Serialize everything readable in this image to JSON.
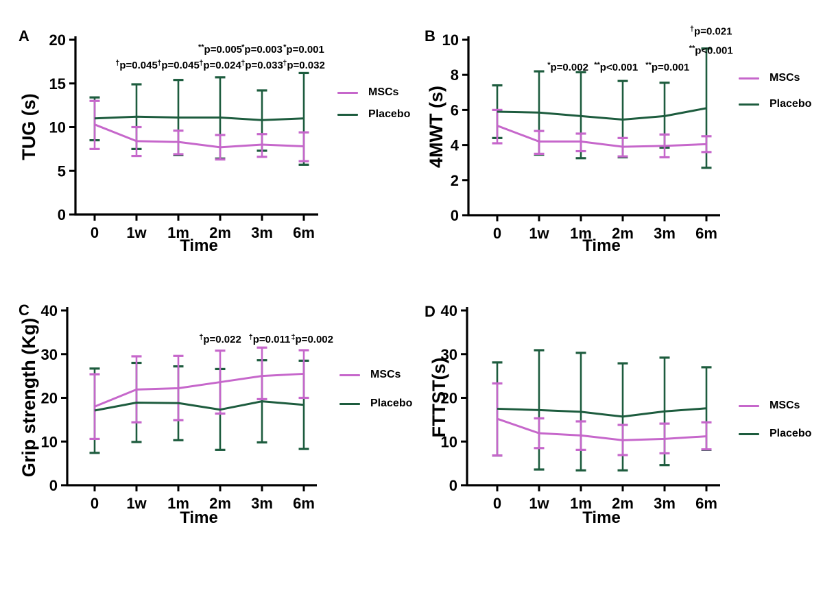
{
  "figure": {
    "background": "#ffffff",
    "legend_labels": {
      "mscs": "MSCs",
      "placebo": "Placebo"
    },
    "colors": {
      "mscs": "#c667cb",
      "placebo": "#1d5c3e",
      "axis": "#000000"
    }
  },
  "chart_data": [
    {
      "type": "line",
      "panel_label": "A",
      "ylabel": "TUG (s)",
      "xlabel": "Time",
      "ylim": [
        0,
        20
      ],
      "yticks": [
        0,
        5,
        10,
        15,
        20
      ],
      "categories": [
        "0",
        "1w",
        "1m",
        "2m",
        "3m",
        "6m"
      ],
      "grid": false,
      "legend_position": "right",
      "series": [
        {
          "name": "MSCs",
          "color_key": "mscs",
          "values": [
            10.3,
            8.4,
            8.3,
            7.7,
            8.0,
            7.8
          ],
          "err_low": [
            7.5,
            6.7,
            6.9,
            6.3,
            6.6,
            6.1
          ],
          "err_high": [
            13.0,
            10.0,
            9.6,
            9.1,
            9.2,
            9.4
          ]
        },
        {
          "name": "Placebo",
          "color_key": "placebo",
          "values": [
            11.0,
            11.2,
            11.1,
            11.1,
            10.8,
            11.0
          ],
          "err_low": [
            8.5,
            7.5,
            6.8,
            6.4,
            7.3,
            5.7
          ],
          "err_high": [
            13.4,
            14.9,
            15.4,
            15.7,
            14.2,
            16.2
          ]
        }
      ],
      "annotations": [
        {
          "sup": "**",
          "text": "p=0.005",
          "cat": 3.0,
          "y": 18.5
        },
        {
          "sup": "*",
          "text": "p=0.003",
          "cat": 4.0,
          "y": 18.5
        },
        {
          "sup": "*",
          "text": "p=0.001",
          "cat": 5.0,
          "y": 18.5
        },
        {
          "sup": "†",
          "text": "p=0.045",
          "cat": 1.0,
          "y": 16.7
        },
        {
          "sup": "†",
          "text": "p=0.045",
          "cat": 2.0,
          "y": 16.7
        },
        {
          "sup": "†",
          "text": "p=0.024",
          "cat": 3.0,
          "y": 16.7
        },
        {
          "sup": "†",
          "text": "p=0.033",
          "cat": 4.0,
          "y": 16.7
        },
        {
          "sup": "†",
          "text": "p=0.032",
          "cat": 5.0,
          "y": 16.7
        }
      ]
    },
    {
      "type": "line",
      "panel_label": "B",
      "ylabel": "4MWT (s)",
      "xlabel": "Time",
      "ylim": [
        0,
        10
      ],
      "yticks": [
        0,
        2,
        4,
        6,
        8,
        10
      ],
      "categories": [
        "0",
        "1w",
        "1m",
        "2m",
        "3m",
        "6m"
      ],
      "grid": false,
      "legend_position": "right",
      "series": [
        {
          "name": "MSCs",
          "color_key": "mscs",
          "values": [
            5.1,
            4.2,
            4.2,
            3.9,
            3.95,
            4.05
          ],
          "err_low": [
            4.1,
            3.5,
            3.65,
            3.35,
            3.3,
            3.6
          ],
          "err_high": [
            6.0,
            4.8,
            4.65,
            4.4,
            4.6,
            4.5
          ]
        },
        {
          "name": "Placebo",
          "color_key": "placebo",
          "values": [
            5.9,
            5.85,
            5.65,
            5.45,
            5.65,
            6.1
          ],
          "err_low": [
            4.4,
            3.45,
            3.25,
            3.3,
            3.85,
            2.7
          ],
          "err_high": [
            7.4,
            8.2,
            8.15,
            7.65,
            7.55,
            9.5
          ]
        }
      ],
      "annotations": [
        {
          "sup": "*",
          "text": "p=0.002",
          "cat": 1.69,
          "y": 8.25
        },
        {
          "sup": "**",
          "text": "p<0.001",
          "cat": 2.84,
          "y": 8.25
        },
        {
          "sup": "**",
          "text": "p=0.001",
          "cat": 4.07,
          "y": 8.25
        },
        {
          "sup": "†",
          "text": "p=0.021",
          "cat": 5.11,
          "y": 10.3
        },
        {
          "sup": "**",
          "text": "p<0.001",
          "cat": 5.11,
          "y": 9.2
        }
      ]
    },
    {
      "type": "line",
      "panel_label": "C",
      "ylabel": "Grip strength (Kg)",
      "xlabel": "Time",
      "ylim": [
        0,
        40
      ],
      "yticks": [
        0,
        10,
        20,
        30,
        40
      ],
      "categories": [
        "0",
        "1w",
        "1m",
        "2m",
        "3m",
        "6m"
      ],
      "grid": false,
      "legend_position": "right",
      "series": [
        {
          "name": "MSCs",
          "color_key": "mscs",
          "values": [
            18.0,
            21.9,
            22.2,
            23.6,
            25.0,
            25.5
          ],
          "err_low": [
            10.6,
            14.4,
            14.9,
            16.4,
            19.7,
            20.0
          ],
          "err_high": [
            25.4,
            29.5,
            29.6,
            30.8,
            31.5,
            30.9
          ]
        },
        {
          "name": "Placebo",
          "color_key": "placebo",
          "values": [
            17.1,
            18.9,
            18.8,
            17.3,
            19.2,
            18.4
          ],
          "err_low": [
            7.4,
            9.9,
            10.3,
            8.1,
            9.8,
            8.3
          ],
          "err_high": [
            26.7,
            28.0,
            27.2,
            26.6,
            28.6,
            28.5
          ]
        }
      ],
      "annotations": [
        {
          "sup": "†",
          "text": "p=0.022",
          "cat": 3.0,
          "y": 32.6
        },
        {
          "sup": "†",
          "text": "p=0.011",
          "cat": 4.18,
          "y": 32.6
        },
        {
          "sup": "‡",
          "text": "p=0.002",
          "cat": 5.2,
          "y": 32.6
        }
      ]
    },
    {
      "type": "line",
      "panel_label": "D",
      "ylabel": "FTTST(s)",
      "xlabel": "Time",
      "ylim": [
        0,
        40
      ],
      "yticks": [
        0,
        10,
        20,
        30,
        40
      ],
      "categories": [
        "0",
        "1w",
        "1m",
        "2m",
        "3m",
        "6m"
      ],
      "grid": false,
      "legend_position": "right",
      "series": [
        {
          "name": "MSCs",
          "color_key": "mscs",
          "values": [
            15.2,
            11.9,
            11.4,
            10.3,
            10.6,
            11.2
          ],
          "err_low": [
            6.8,
            8.5,
            8.1,
            6.9,
            7.3,
            8.2
          ],
          "err_high": [
            23.3,
            15.3,
            14.6,
            13.8,
            14.1,
            14.4
          ]
        },
        {
          "name": "Placebo",
          "color_key": "placebo",
          "values": [
            17.5,
            17.2,
            16.8,
            15.7,
            16.9,
            17.6
          ],
          "err_low": [
            6.8,
            3.6,
            3.4,
            3.4,
            4.6,
            8.1
          ],
          "err_high": [
            28.1,
            30.9,
            30.3,
            27.9,
            29.2,
            27.0
          ]
        }
      ],
      "annotations": []
    }
  ]
}
